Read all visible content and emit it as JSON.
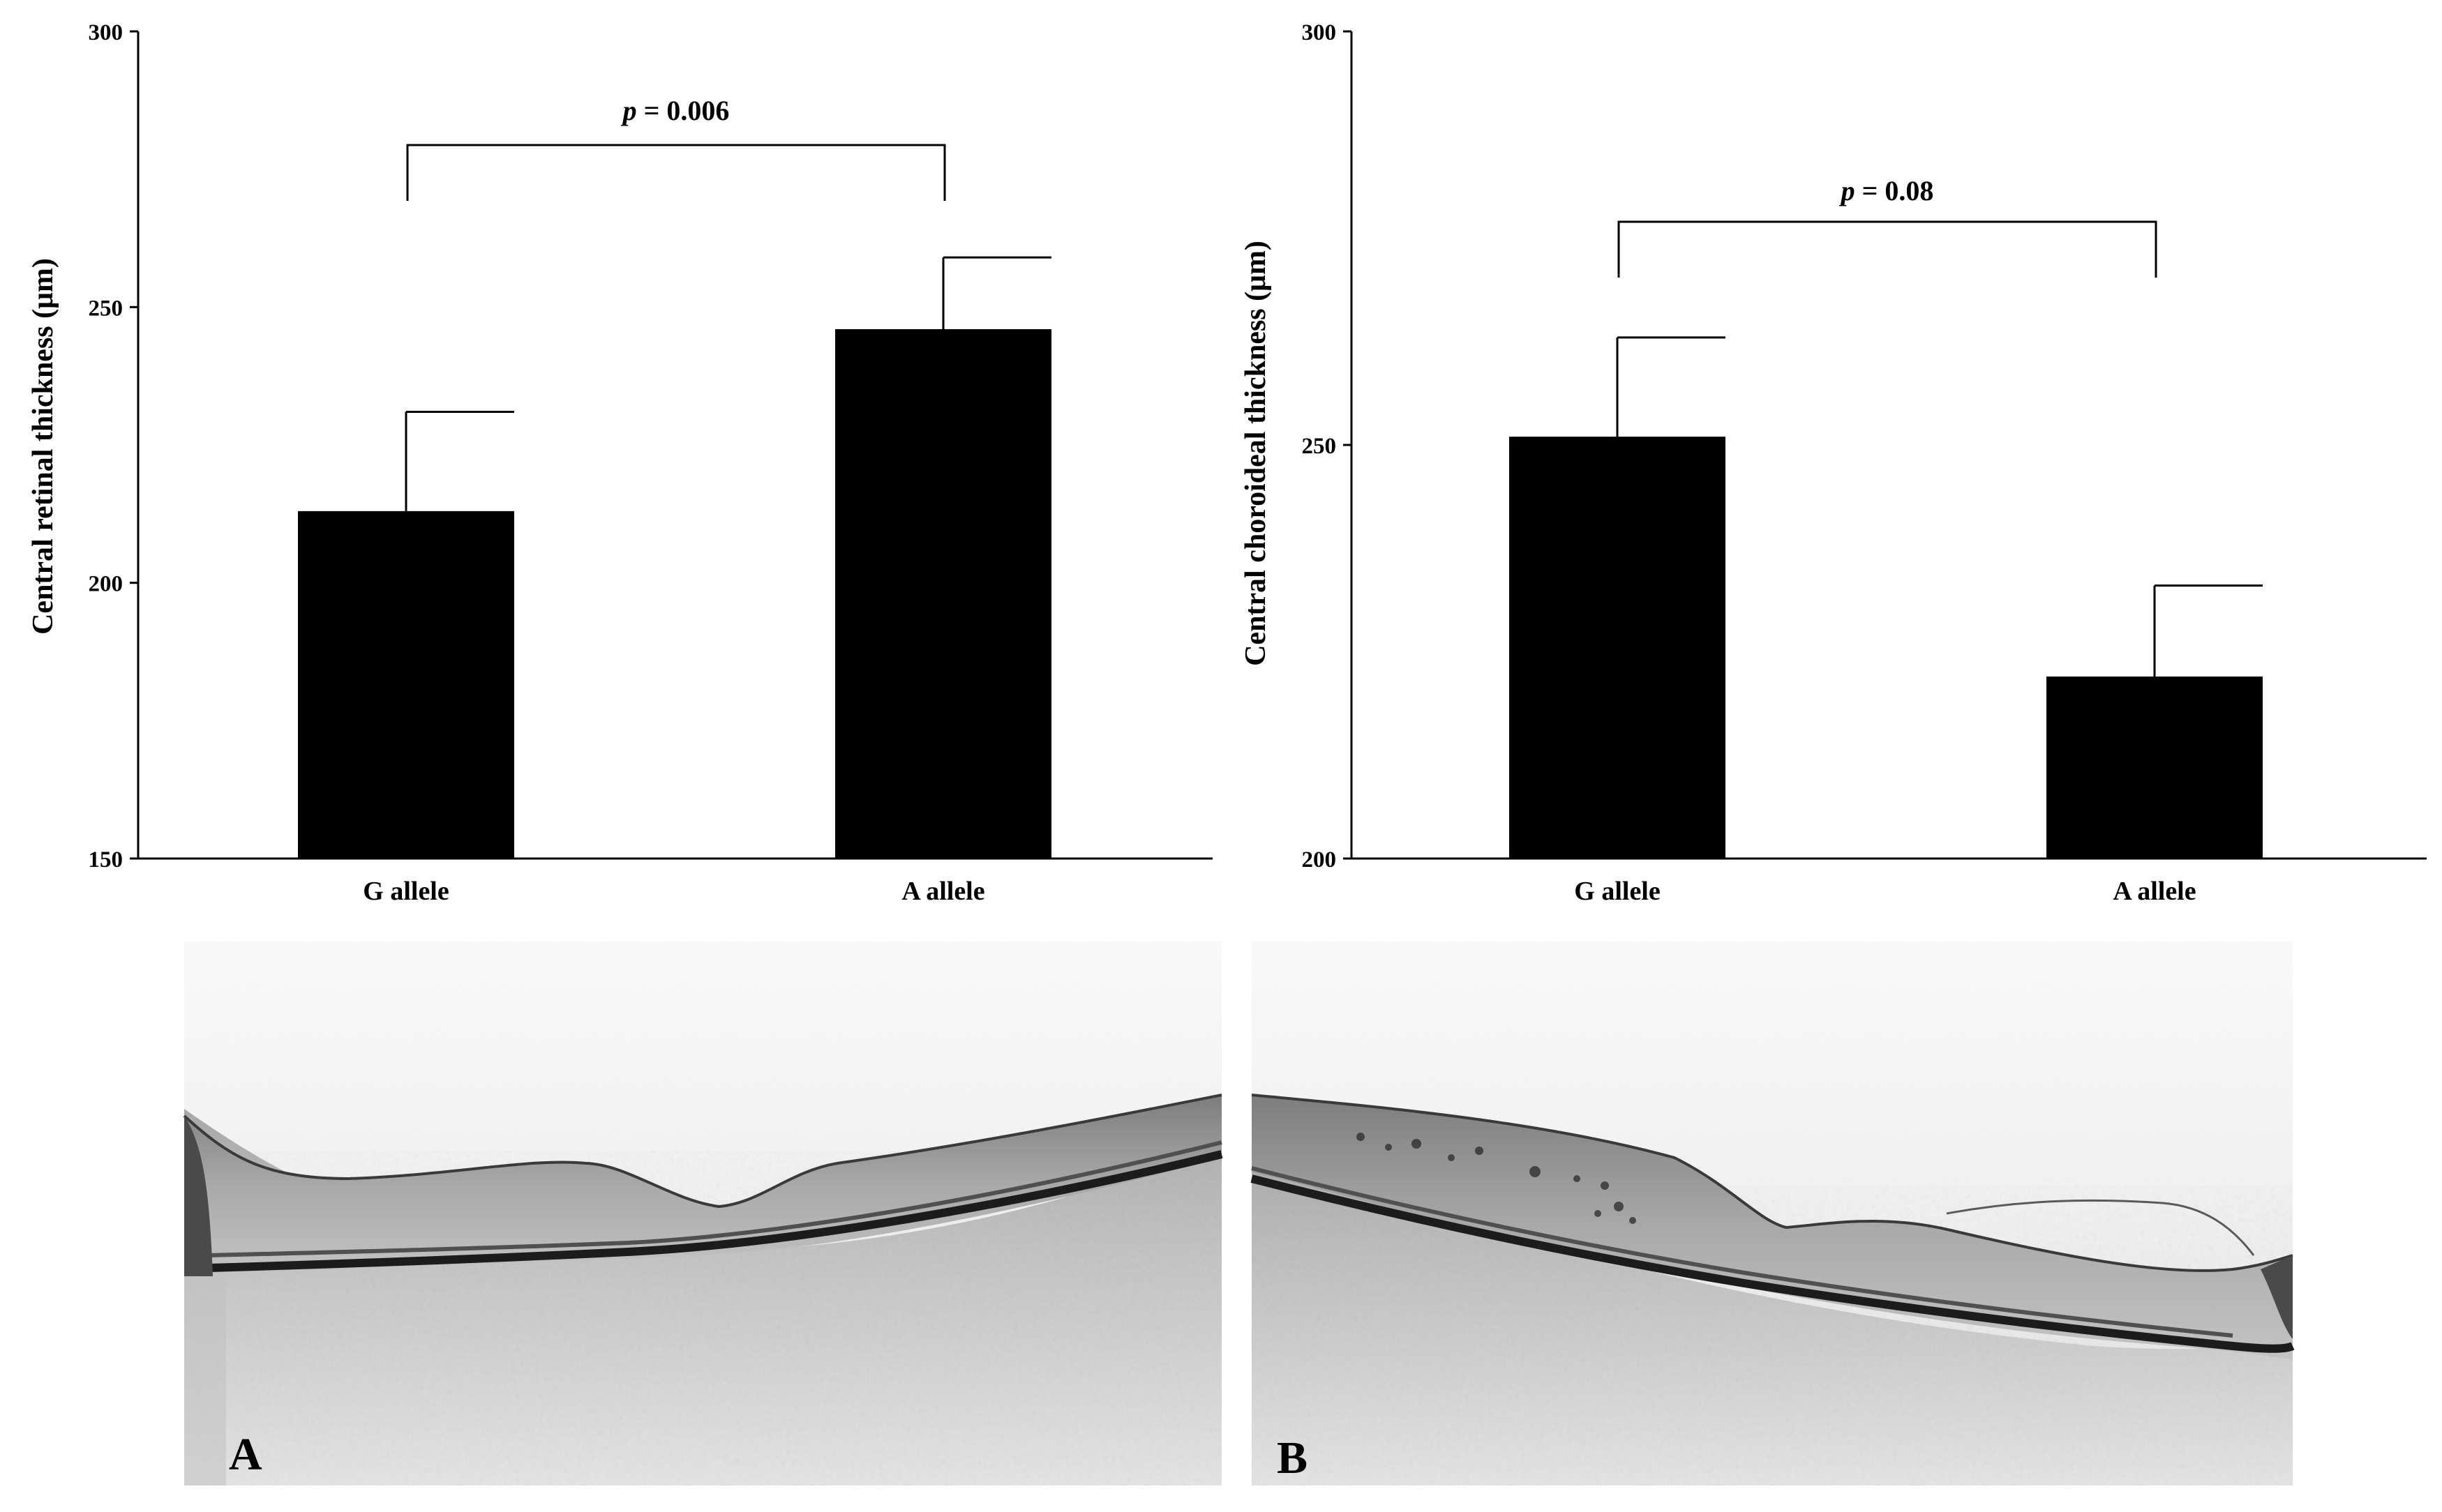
{
  "chart_data": [
    {
      "type": "bar",
      "title": "",
      "xlabel": "",
      "ylabel": "Central retinal thickness (μm)",
      "categories": [
        "G allele",
        "A allele"
      ],
      "values": [
        213,
        246
      ],
      "error": [
        18,
        13
      ],
      "ylim": [
        150,
        300
      ],
      "yticks": [
        "150",
        "200",
        "250",
        "300"
      ],
      "grid": false,
      "annotation": {
        "prefix": "p",
        "text": " = 0.006",
        "between": [
          "G allele",
          "A allele"
        ]
      }
    },
    {
      "type": "bar",
      "title": "",
      "xlabel": "",
      "ylabel": "Central choroideal thickness (μm)",
      "categories": [
        "G allele",
        "A allele"
      ],
      "values": [
        251,
        222
      ],
      "error": [
        12,
        11
      ],
      "ylim": [
        200,
        300
      ],
      "yticks": [
        "200",
        "250",
        "300"
      ],
      "grid": false,
      "annotation": {
        "prefix": "p",
        "text": " = 0.08",
        "between": [
          "G allele",
          "A allele"
        ]
      }
    }
  ],
  "images": [
    {
      "label": "A",
      "description_name": "oct-scan-a"
    },
    {
      "label": "B",
      "description_name": "oct-scan-b"
    }
  ],
  "colors": {
    "bar": "#000000",
    "axis": "#000000",
    "background": "#ffffff"
  }
}
